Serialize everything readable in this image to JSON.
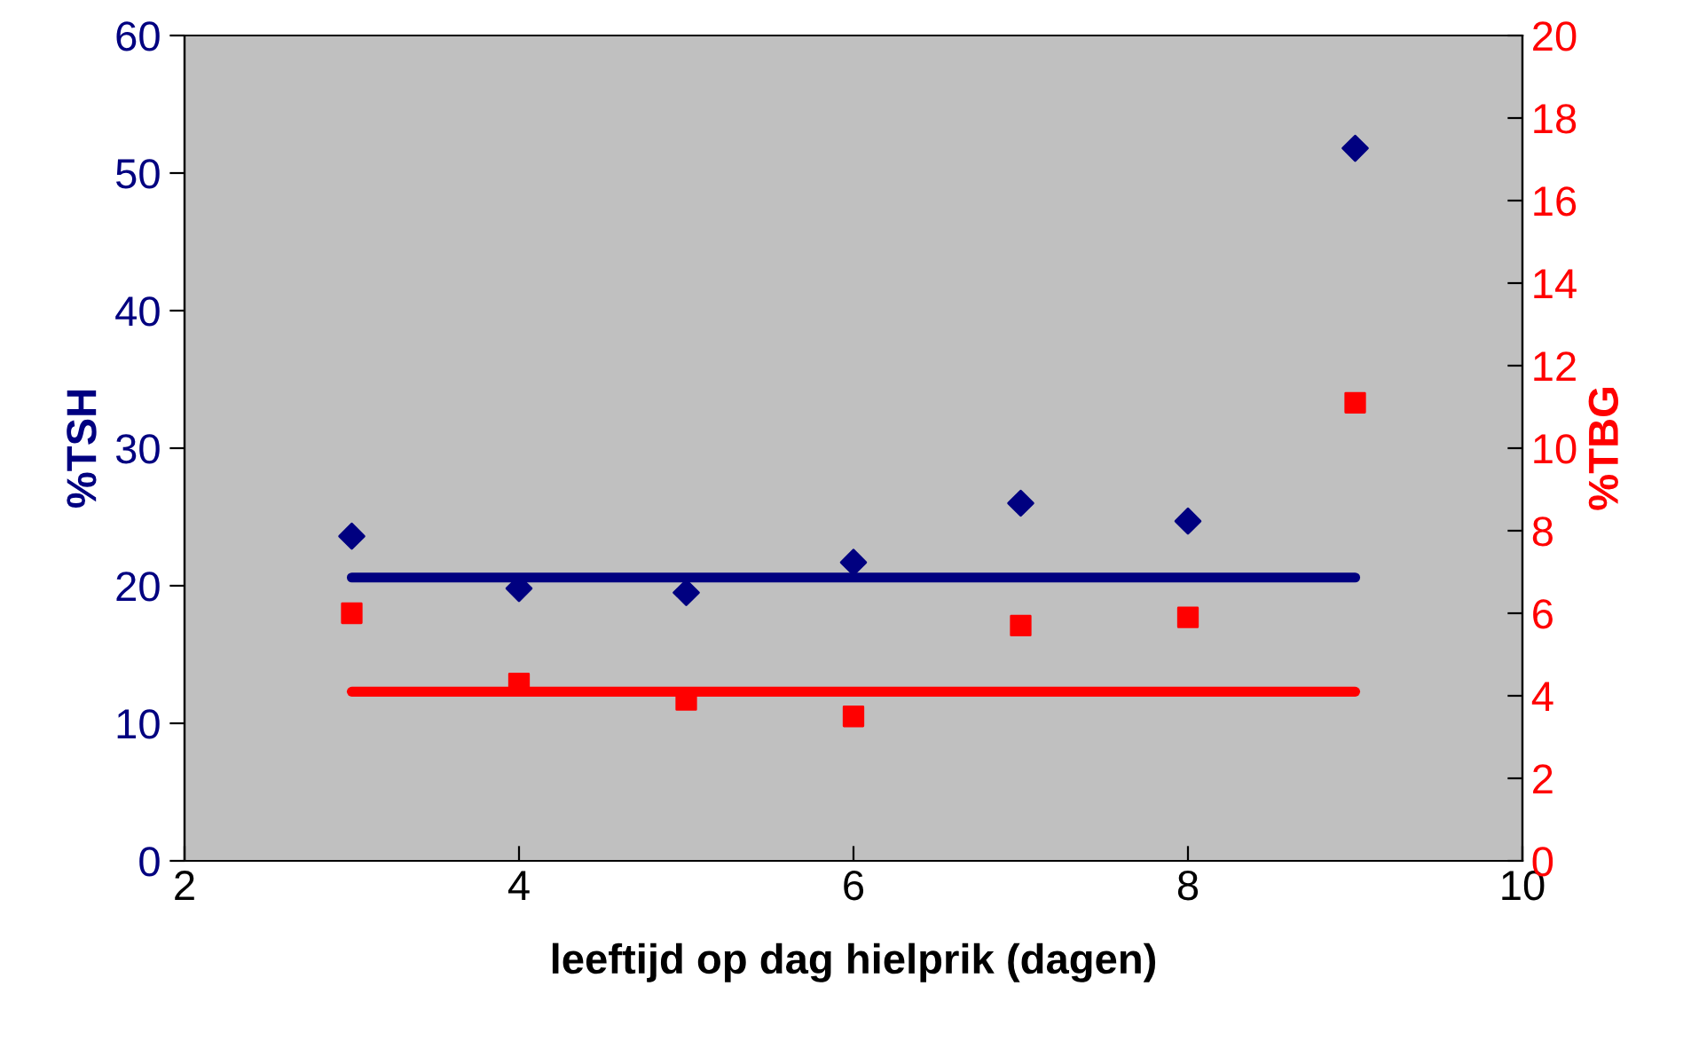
{
  "chart_data": {
    "type": "scatter",
    "xlabel": "leeftijd op dag hielprik (dagen)",
    "ylabel": "%TSH",
    "y2label": "%TBG",
    "xlim": [
      2,
      10
    ],
    "xticks": [
      2,
      4,
      6,
      8,
      10
    ],
    "ylim": [
      0,
      60
    ],
    "yticks": [
      0,
      10,
      20,
      30,
      40,
      50,
      60
    ],
    "y2lim": [
      0,
      20
    ],
    "y2ticks": [
      0,
      2,
      4,
      6,
      8,
      10,
      12,
      14,
      16,
      18,
      20
    ],
    "grid": false,
    "legend": false,
    "series": [
      {
        "color": "#000080",
        "marker": "diamond",
        "x": [
          3,
          4,
          5,
          6,
          7,
          8,
          9
        ],
        "values": [
          23.6,
          19.8,
          19.5,
          21.7,
          26.0,
          24.7,
          51.8
        ]
      },
      {
        "color": "#ff0000",
        "marker": "square",
        "axis": "y2",
        "x": [
          3,
          4,
          5,
          6,
          7,
          8,
          9
        ],
        "values": [
          6.0,
          4.3,
          3.9,
          3.5,
          5.7,
          5.9,
          11.1
        ]
      },
      {
        "type": "line",
        "color": "#000080",
        "marker": "none",
        "line_style": "solid",
        "x": [
          3,
          9
        ],
        "values": [
          20.6,
          20.6
        ]
      },
      {
        "type": "line",
        "color": "#ff0000",
        "marker": "none",
        "line_style": "solid",
        "axis": "y2",
        "x": [
          3,
          9
        ],
        "values": [
          4.1,
          4.1
        ]
      }
    ]
  }
}
